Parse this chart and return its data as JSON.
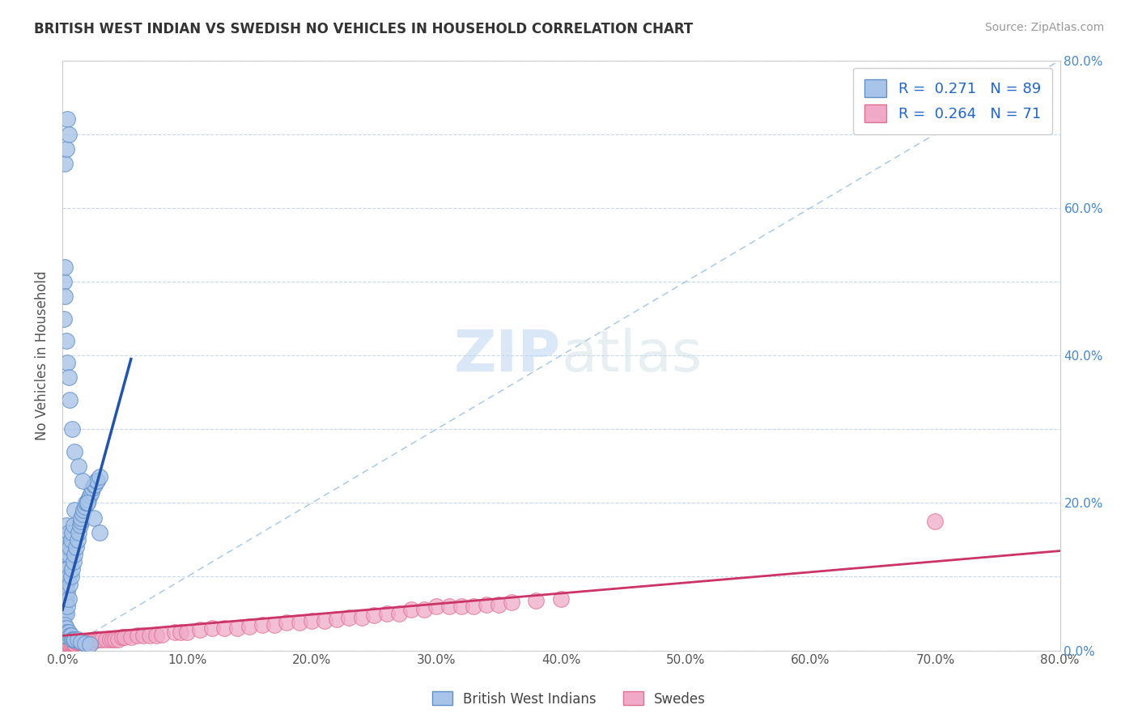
{
  "title": "BRITISH WEST INDIAN VS SWEDISH NO VEHICLES IN HOUSEHOLD CORRELATION CHART",
  "source": "Source: ZipAtlas.com",
  "ylabel": "No Vehicles in Household",
  "xlim": [
    0,
    0.8
  ],
  "ylim": [
    0,
    0.8
  ],
  "xticks": [
    0.0,
    0.1,
    0.2,
    0.3,
    0.4,
    0.5,
    0.6,
    0.7,
    0.8
  ],
  "yticks": [
    0.0,
    0.1,
    0.2,
    0.3,
    0.4,
    0.5,
    0.6,
    0.7,
    0.8
  ],
  "xtick_labels": [
    "0.0%",
    "10.0%",
    "20.0%",
    "30.0%",
    "40.0%",
    "50.0%",
    "60.0%",
    "70.0%",
    "80.0%"
  ],
  "ytick_labels_right": [
    "0.0%",
    "20.0%",
    "40.0%",
    "60.0%",
    "80.0%"
  ],
  "yticks_right": [
    0.0,
    0.2,
    0.4,
    0.6,
    0.8
  ],
  "blue_color": "#a8c4e8",
  "pink_color": "#f0aac8",
  "blue_edge": "#6090c8",
  "pink_edge": "#e07090",
  "trend_blue": "#2255aa",
  "trend_pink": "#cc3366",
  "trend_dashed_color": "#88b8e8",
  "R_blue": 0.271,
  "N_blue": 89,
  "R_pink": 0.264,
  "N_pink": 71,
  "legend_label_blue": "British West Indians",
  "legend_label_pink": "Swedes",
  "blue_trend_x0": 0.0,
  "blue_trend_y0": 0.055,
  "blue_trend_x1": 0.055,
  "blue_trend_y1": 0.395,
  "pink_trend_x0": 0.0,
  "pink_trend_y0": 0.02,
  "pink_trend_x1": 0.8,
  "pink_trend_y1": 0.135,
  "blue_x": [
    0.001,
    0.001,
    0.001,
    0.001,
    0.002,
    0.002,
    0.002,
    0.002,
    0.002,
    0.003,
    0.003,
    0.003,
    0.003,
    0.003,
    0.003,
    0.003,
    0.004,
    0.004,
    0.004,
    0.004,
    0.005,
    0.005,
    0.005,
    0.005,
    0.006,
    0.006,
    0.007,
    0.007,
    0.008,
    0.008,
    0.009,
    0.009,
    0.01,
    0.01,
    0.011,
    0.012,
    0.013,
    0.014,
    0.015,
    0.015,
    0.016,
    0.017,
    0.018,
    0.019,
    0.02,
    0.021,
    0.022,
    0.023,
    0.024,
    0.025,
    0.026,
    0.027,
    0.028,
    0.03,
    0.001,
    0.001,
    0.002,
    0.002,
    0.003,
    0.003,
    0.004,
    0.005,
    0.006,
    0.007,
    0.008,
    0.009,
    0.01,
    0.012,
    0.015,
    0.018,
    0.022,
    0.001,
    0.001,
    0.002,
    0.002,
    0.003,
    0.004,
    0.005,
    0.006,
    0.008,
    0.01,
    0.013,
    0.016,
    0.02,
    0.025,
    0.03,
    0.002,
    0.003,
    0.004,
    0.005
  ],
  "blue_y": [
    0.05,
    0.06,
    0.08,
    0.1,
    0.05,
    0.065,
    0.08,
    0.1,
    0.12,
    0.05,
    0.07,
    0.09,
    0.11,
    0.13,
    0.15,
    0.17,
    0.06,
    0.08,
    0.11,
    0.14,
    0.07,
    0.1,
    0.13,
    0.16,
    0.09,
    0.14,
    0.1,
    0.15,
    0.11,
    0.16,
    0.12,
    0.17,
    0.13,
    0.19,
    0.14,
    0.15,
    0.16,
    0.17,
    0.175,
    0.18,
    0.185,
    0.19,
    0.195,
    0.2,
    0.2,
    0.205,
    0.21,
    0.215,
    0.22,
    0.225,
    0.225,
    0.23,
    0.23,
    0.235,
    0.02,
    0.03,
    0.025,
    0.035,
    0.02,
    0.03,
    0.025,
    0.025,
    0.02,
    0.02,
    0.015,
    0.015,
    0.015,
    0.015,
    0.012,
    0.01,
    0.008,
    0.45,
    0.5,
    0.48,
    0.52,
    0.42,
    0.39,
    0.37,
    0.34,
    0.3,
    0.27,
    0.25,
    0.23,
    0.2,
    0.18,
    0.16,
    0.66,
    0.68,
    0.72,
    0.7
  ],
  "pink_x": [
    0.001,
    0.002,
    0.003,
    0.004,
    0.005,
    0.006,
    0.007,
    0.008,
    0.009,
    0.01,
    0.011,
    0.012,
    0.013,
    0.014,
    0.015,
    0.016,
    0.017,
    0.018,
    0.019,
    0.02,
    0.022,
    0.024,
    0.026,
    0.028,
    0.03,
    0.032,
    0.035,
    0.038,
    0.04,
    0.042,
    0.045,
    0.048,
    0.05,
    0.055,
    0.06,
    0.065,
    0.07,
    0.075,
    0.08,
    0.09,
    0.095,
    0.1,
    0.11,
    0.12,
    0.13,
    0.14,
    0.15,
    0.16,
    0.17,
    0.18,
    0.19,
    0.2,
    0.21,
    0.22,
    0.23,
    0.24,
    0.25,
    0.26,
    0.27,
    0.28,
    0.29,
    0.3,
    0.31,
    0.32,
    0.33,
    0.34,
    0.35,
    0.36,
    0.38,
    0.4,
    0.7
  ],
  "pink_y": [
    0.01,
    0.01,
    0.01,
    0.01,
    0.01,
    0.01,
    0.01,
    0.01,
    0.01,
    0.01,
    0.012,
    0.012,
    0.012,
    0.012,
    0.012,
    0.012,
    0.012,
    0.012,
    0.012,
    0.012,
    0.012,
    0.012,
    0.015,
    0.015,
    0.015,
    0.015,
    0.015,
    0.015,
    0.015,
    0.015,
    0.015,
    0.018,
    0.018,
    0.018,
    0.02,
    0.02,
    0.02,
    0.02,
    0.022,
    0.025,
    0.025,
    0.025,
    0.028,
    0.03,
    0.03,
    0.03,
    0.032,
    0.035,
    0.035,
    0.038,
    0.038,
    0.04,
    0.04,
    0.042,
    0.045,
    0.045,
    0.048,
    0.05,
    0.05,
    0.055,
    0.055,
    0.06,
    0.06,
    0.06,
    0.06,
    0.062,
    0.062,
    0.065,
    0.068,
    0.07,
    0.175
  ]
}
